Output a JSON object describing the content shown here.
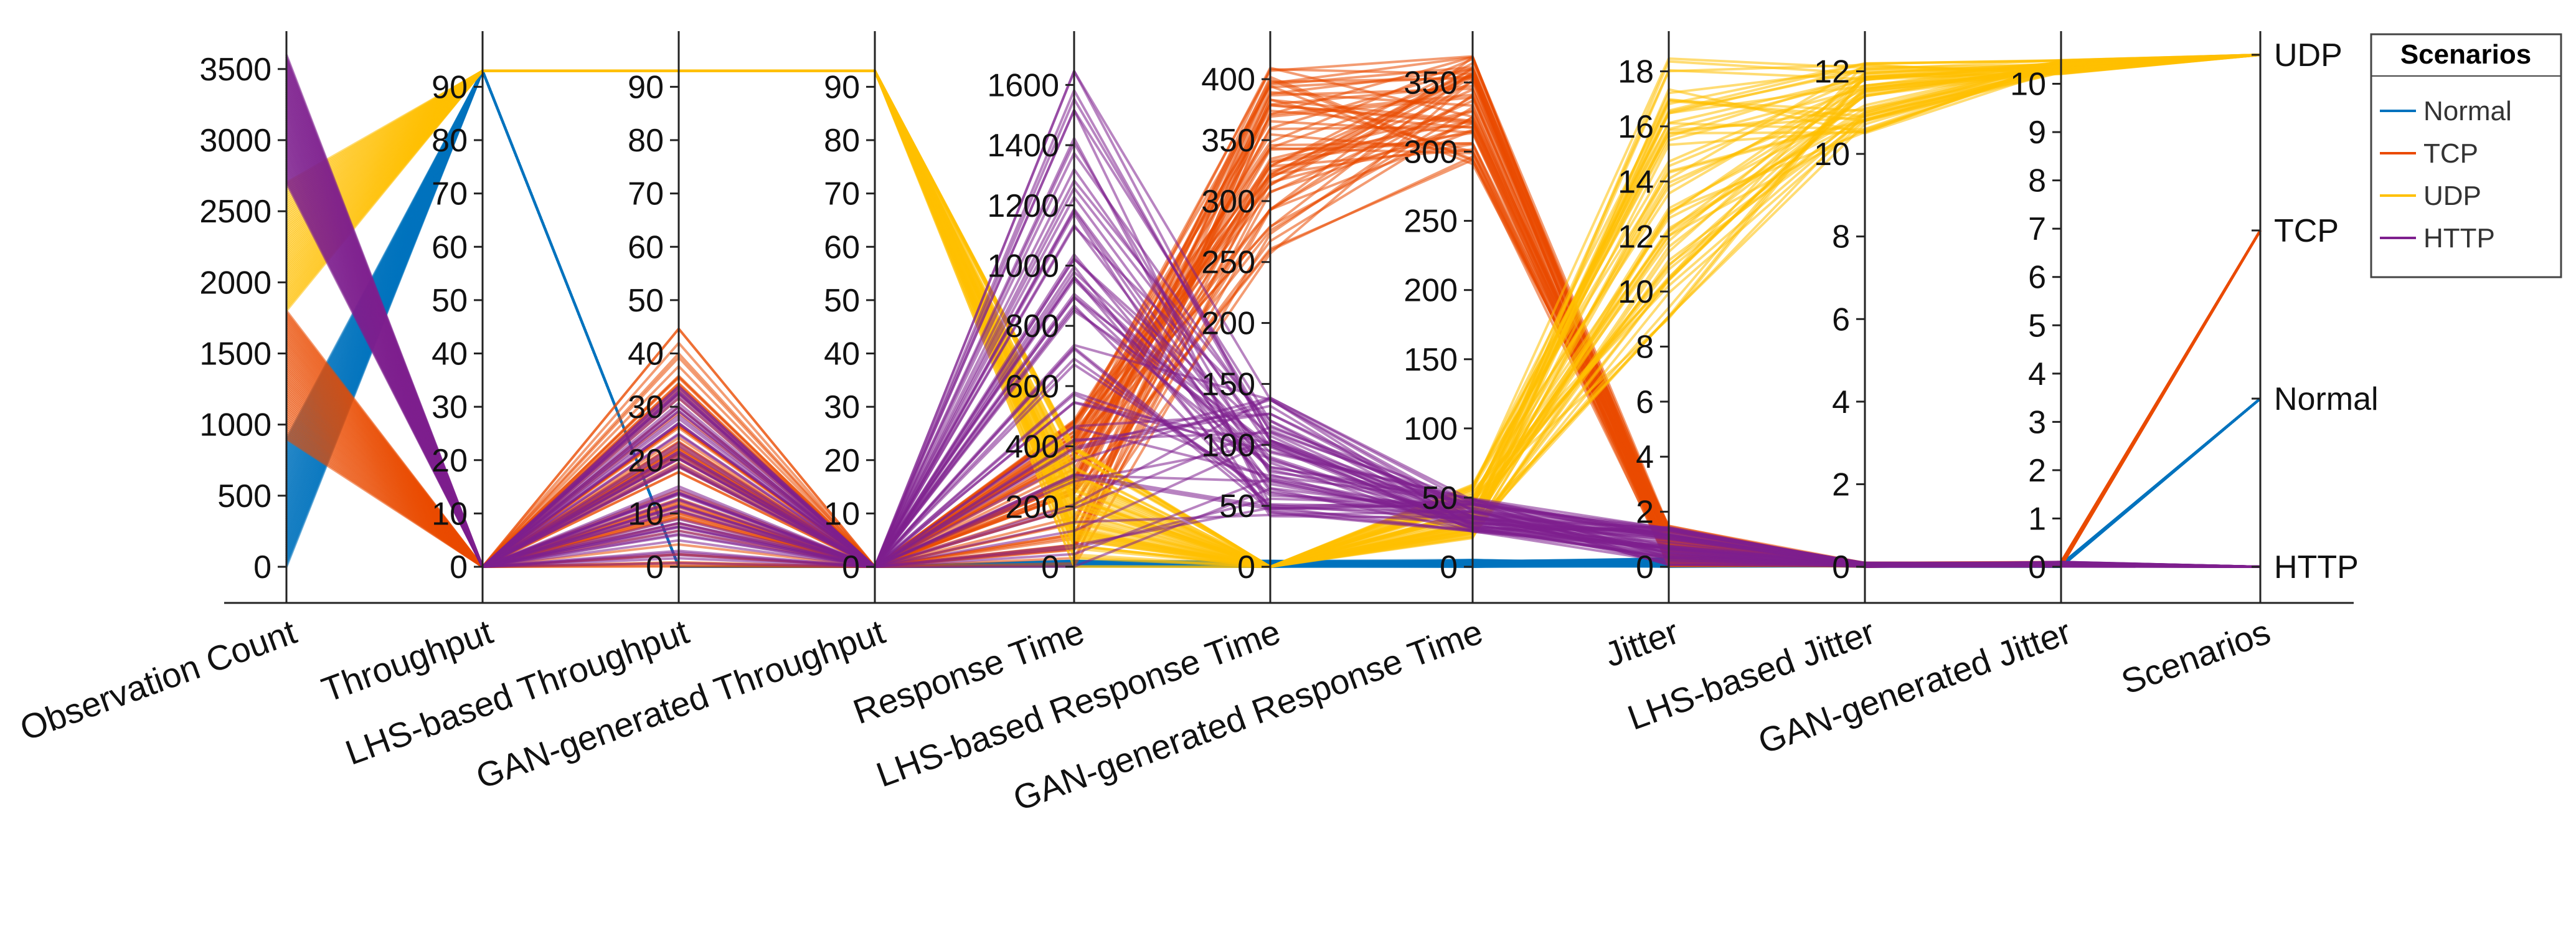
{
  "chart_data": {
    "type": "parallel-coordinates",
    "axes": [
      {
        "label": "Observation Count",
        "ticks": [
          "0",
          "500",
          "1000",
          "1500",
          "2000",
          "2500",
          "3000",
          "3500"
        ],
        "range": [
          0,
          3600
        ]
      },
      {
        "label": "Throughput",
        "ticks": [
          "0",
          "10",
          "20",
          "30",
          "40",
          "50",
          "60",
          "70",
          "80",
          "90"
        ],
        "range": [
          0,
          96
        ]
      },
      {
        "label": "LHS-based Throughput",
        "ticks": [
          "0",
          "10",
          "20",
          "30",
          "40",
          "50",
          "60",
          "70",
          "80",
          "90"
        ],
        "range": [
          0,
          96
        ]
      },
      {
        "label": "GAN-generated Throughput",
        "ticks": [
          "0",
          "10",
          "20",
          "30",
          "40",
          "50",
          "60",
          "70",
          "80",
          "90"
        ],
        "range": [
          0,
          96
        ]
      },
      {
        "label": "Response Time",
        "ticks": [
          "0",
          "200",
          "400",
          "600",
          "800",
          "1000",
          "1200",
          "1400",
          "1600"
        ],
        "range": [
          0,
          1700
        ]
      },
      {
        "label": "LHS-based Response Time",
        "ticks": [
          "0",
          "50",
          "100",
          "150",
          "200",
          "250",
          "300",
          "350",
          "400"
        ],
        "range": [
          0,
          420
        ]
      },
      {
        "label": "GAN-generated Response Time",
        "ticks": [
          "0",
          "50",
          "100",
          "150",
          "200",
          "250",
          "300",
          "350"
        ],
        "range": [
          0,
          370
        ]
      },
      {
        "label": "Jitter",
        "ticks": [
          "0",
          "2",
          "4",
          "6",
          "8",
          "10",
          "12",
          "14",
          "16",
          "18"
        ],
        "range": [
          0,
          18.6
        ]
      },
      {
        "label": "LHS-based Jitter",
        "ticks": [
          "0",
          "2",
          "4",
          "6",
          "8",
          "10",
          "12"
        ],
        "range": [
          0,
          12.4
        ]
      },
      {
        "label": "GAN-generated Jitter",
        "ticks": [
          "0",
          "1",
          "2",
          "3",
          "4",
          "5",
          "6",
          "7",
          "8",
          "9",
          "10"
        ],
        "range": [
          0,
          10.6
        ]
      },
      {
        "label": "Scenarios",
        "ticks": [
          "HTTP",
          "Normal",
          "TCP",
          "UDP"
        ],
        "range": [
          0,
          3
        ]
      }
    ],
    "series": [
      {
        "name": "Normal",
        "color": "#0072BD",
        "profile": [
          [
            0,
            900
          ],
          [
            93,
            93
          ],
          [
            0,
            0
          ],
          [
            0,
            0
          ],
          [
            0,
            20
          ],
          [
            0,
            5
          ],
          [
            0,
            5
          ],
          [
            0,
            0.3
          ],
          [
            0,
            0.05
          ],
          [
            0,
            0.05
          ],
          [
            1,
            1
          ]
        ]
      },
      {
        "name": "TCP",
        "color": "#EA4A00",
        "profile": [
          [
            900,
            1800
          ],
          [
            0,
            0
          ],
          [
            0,
            45
          ],
          [
            0,
            0
          ],
          [
            0,
            500
          ],
          [
            250,
            410
          ],
          [
            290,
            370
          ],
          [
            0,
            1.5
          ],
          [
            0,
            0.1
          ],
          [
            0,
            0.1
          ],
          [
            2,
            2
          ]
        ]
      },
      {
        "name": "UDP",
        "color": "#FFC000",
        "profile": [
          [
            1800,
            2700
          ],
          [
            93,
            93
          ],
          [
            93,
            93
          ],
          [
            93,
            93
          ],
          [
            0,
            400
          ],
          [
            0,
            0
          ],
          [
            20,
            60
          ],
          [
            9,
            18.5
          ],
          [
            10.5,
            12.2
          ],
          [
            10.2,
            10.5
          ],
          [
            3,
            3
          ]
        ]
      },
      {
        "name": "HTTP",
        "color": "#7E1F8E",
        "profile": [
          [
            2700,
            3600
          ],
          [
            0,
            0
          ],
          [
            0,
            35
          ],
          [
            0,
            0
          ],
          [
            0,
            1650
          ],
          [
            40,
            140
          ],
          [
            25,
            50
          ],
          [
            0,
            1.5
          ],
          [
            0,
            0.1
          ],
          [
            0,
            0.1
          ],
          [
            0,
            0
          ]
        ]
      }
    ],
    "legend": {
      "title": "Scenarios",
      "position": "top-right"
    },
    "grid": false
  }
}
